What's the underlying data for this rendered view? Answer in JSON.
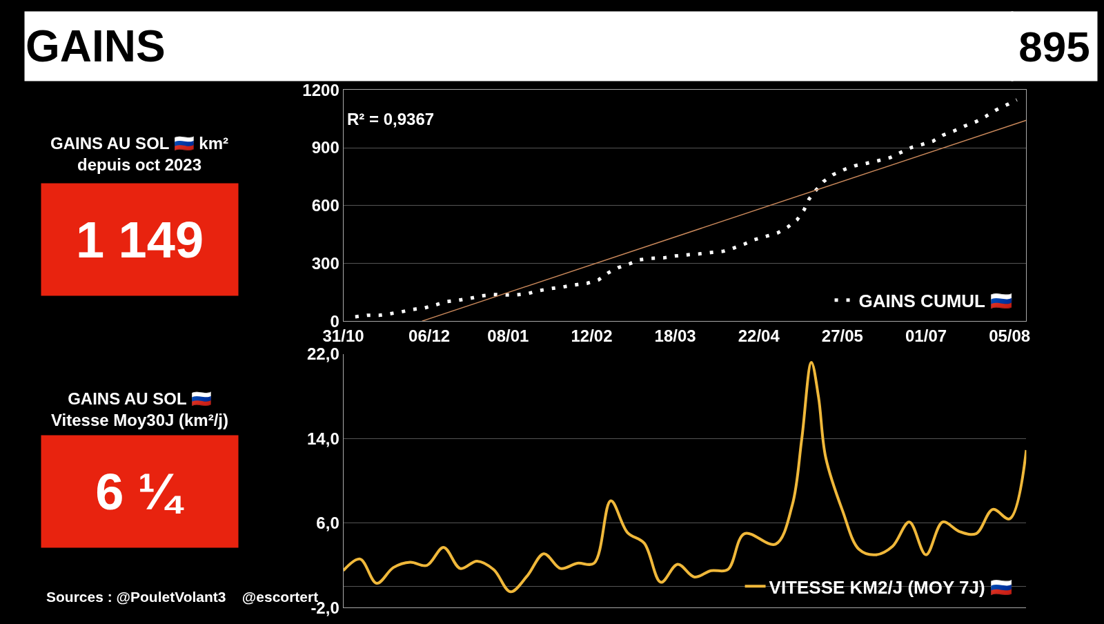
{
  "chart_data": [
    {
      "type": "other",
      "title": "GAINS",
      "annotations": [
        "895",
        "GAINS AU SOL 🇷🇺 km²\ndepuis oct 2023",
        "1 149",
        "GAINS AU SOL 🇷🇺\nVitesse Moy30J (km²/j)",
        "6 ¼",
        "Sources : @PouletVolant3    @escortert"
      ]
    },
    {
      "type": "line",
      "annotations": [
        "R² = 0,9367"
      ],
      "legend": "bottom right",
      "grid": "y",
      "xlim": [
        "2023-10-31",
        "2024-08-12"
      ],
      "xticks": [
        {
          "value": "2023-10-31",
          "label": "31/10"
        },
        {
          "value": "2023-12-06",
          "label": "06/12"
        },
        {
          "value": "2024-01-08",
          "label": "08/01"
        },
        {
          "value": "2024-02-12",
          "label": "12/02"
        },
        {
          "value": "2024-03-18",
          "label": "18/03"
        },
        {
          "value": "2024-04-22",
          "label": "22/04"
        },
        {
          "value": "2024-05-27",
          "label": "27/05"
        },
        {
          "value": "2024-07-01",
          "label": "01/07"
        },
        {
          "value": "2024-08-05",
          "label": "05/08"
        }
      ],
      "ylim": [
        0,
        1200
      ],
      "yticks": [
        0,
        300,
        600,
        900,
        1200
      ],
      "series": [
        {
          "name": "GAINS CUMUL 🇷🇺",
          "color": "#ffffff",
          "line_style": "dotted",
          "x": [
            "2023-11-05",
            "2023-11-10",
            "2023-11-15",
            "2023-11-19",
            "2023-11-24",
            "2023-11-29",
            "2023-12-04",
            "2023-12-09",
            "2023-12-13",
            "2023-12-18",
            "2023-12-23",
            "2023-12-28",
            "2024-01-02",
            "2024-01-07",
            "2024-01-11",
            "2024-01-16",
            "2024-01-21",
            "2024-01-26",
            "2024-01-31",
            "2024-02-05",
            "2024-02-10",
            "2024-02-15",
            "2024-02-19",
            "2024-02-23",
            "2024-02-28",
            "2024-03-03",
            "2024-03-08",
            "2024-03-13",
            "2024-03-18",
            "2024-03-23",
            "2024-03-28",
            "2024-04-02",
            "2024-04-07",
            "2024-04-11",
            "2024-04-16",
            "2024-04-20",
            "2024-04-25",
            "2024-04-30",
            "2024-05-04",
            "2024-05-08",
            "2024-05-11",
            "2024-05-13",
            "2024-05-16",
            "2024-05-19",
            "2024-05-23",
            "2024-05-28",
            "2024-06-01",
            "2024-06-06",
            "2024-06-11",
            "2024-06-16",
            "2024-06-20",
            "2024-06-25",
            "2024-06-29",
            "2024-07-04",
            "2024-07-08",
            "2024-07-13",
            "2024-07-17",
            "2024-07-22",
            "2024-07-26",
            "2024-07-30",
            "2024-08-04",
            "2024-08-08"
          ],
          "values": [
            22,
            30,
            30,
            37,
            47,
            60,
            68,
            85,
            101,
            108,
            118,
            131,
            138,
            136,
            136,
            142,
            158,
            169,
            177,
            188,
            196,
            215,
            251,
            277,
            298,
            318,
            326,
            328,
            338,
            344,
            349,
            356,
            362,
            377,
            400,
            422,
            440,
            459,
            487,
            526,
            579,
            633,
            681,
            724,
            760,
            788,
            806,
            819,
            833,
            849,
            873,
            902,
            916,
            935,
            965,
            989,
            1012,
            1036,
            1063,
            1094,
            1124,
            1149
          ]
        },
        {
          "type": "line",
          "color": "#c8875a",
          "x": [
            "2023-12-03",
            "2024-08-12"
          ],
          "values": [
            0,
            1043
          ]
        }
      ]
    },
    {
      "type": "line",
      "legend": "bottom right",
      "grid": "y",
      "tick_labels": "y",
      "xlim": [
        "2023-10-31",
        "2024-08-12"
      ],
      "ylim": [
        -2,
        22
      ],
      "yticks": [
        {
          "value": -2,
          "label": "-2,0"
        },
        {
          "value": 0,
          "label": null
        },
        {
          "value": 6,
          "label": "6,0"
        },
        {
          "value": 14,
          "label": "14,0"
        },
        {
          "value": 22,
          "label": "22,0"
        }
      ],
      "series": [
        {
          "name": "VITESSE KM2/J (MOY 7J) 🇷🇺",
          "color": "#f0b83a",
          "x": [
            "2023-10-31",
            "2023-11-07",
            "2023-11-14",
            "2023-11-21",
            "2023-11-28",
            "2023-12-05",
            "2023-12-12",
            "2023-12-19",
            "2023-12-26",
            "2024-01-02",
            "2024-01-09",
            "2024-01-16",
            "2024-01-23",
            "2024-01-30",
            "2024-02-06",
            "2024-02-13",
            "2024-02-20",
            "2024-02-27",
            "2024-03-05",
            "2024-03-12",
            "2024-03-19",
            "2024-03-26",
            "2024-04-02",
            "2024-04-09",
            "2024-04-16",
            "2024-04-29",
            "2024-05-06",
            "2024-05-10",
            "2024-05-14",
            "2024-05-17",
            "2024-05-20",
            "2024-05-27",
            "2024-06-03",
            "2024-06-10",
            "2024-06-17",
            "2024-06-24",
            "2024-07-01",
            "2024-07-08",
            "2024-07-15",
            "2024-07-22",
            "2024-07-29",
            "2024-08-05",
            "2024-08-12"
          ],
          "values": [
            1.5,
            2.6,
            0.3,
            1.8,
            2.3,
            2.0,
            3.7,
            1.7,
            2.4,
            1.6,
            -0.5,
            1.0,
            3.1,
            1.7,
            2.2,
            2.2,
            8.1,
            5.1,
            4.1,
            0.4,
            2.1,
            0.9,
            1.5,
            1.6,
            5.0,
            4.0,
            7.7,
            14.0,
            21.2,
            17.9,
            12.2,
            7.2,
            3.5,
            3.0,
            3.8,
            6.1,
            3.0,
            6.1,
            5.2,
            5.0,
            7.3,
            6.4,
            12.9
          ]
        }
      ]
    }
  ]
}
